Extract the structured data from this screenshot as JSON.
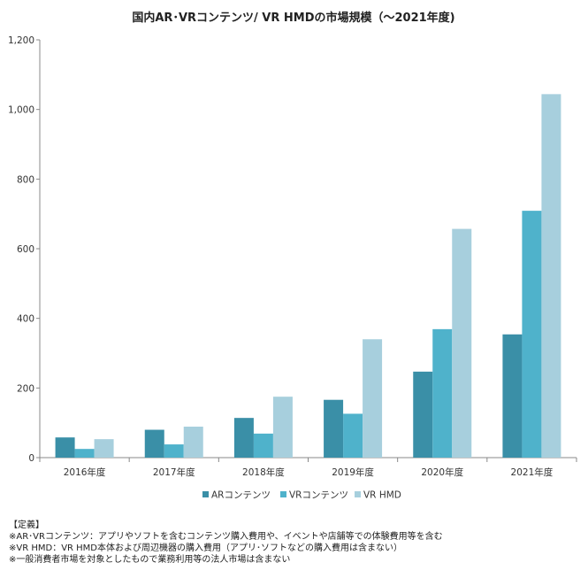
{
  "chart_data": {
    "type": "bar",
    "title": "国内AR･VRコンテンツ/ VR HMDの市場規模（～2021年度)",
    "categories": [
      "2016年度",
      "2017年度",
      "2018年度",
      "2019年度",
      "2020年度",
      "2021年度"
    ],
    "series": [
      {
        "name": "ARコンテンツ",
        "color": "#3a8fa7",
        "values": [
          58,
          80,
          114,
          166,
          247,
          354
        ]
      },
      {
        "name": "VRコンテンツ",
        "color": "#4fb2cb",
        "values": [
          25,
          38,
          69,
          126,
          369,
          709
        ]
      },
      {
        "name": "VR HMD",
        "color": "#a7cfdd",
        "values": [
          53,
          89,
          175,
          340,
          657,
          1044
        ]
      }
    ],
    "yticks": [
      "0",
      "200",
      "400",
      "600",
      "800",
      "1,000",
      "1,200"
    ],
    "ylim": [
      0,
      1200
    ],
    "grid": false,
    "legend_position": "bottom"
  },
  "notes": {
    "heading": "【定義】",
    "lines": [
      "※AR･VRコンテンツ：アプリやソフトを含むコンテンツ購入費用や、イベントや店舗等での体験費用等を含む",
      "※VR HMD：VR HMD本体および周辺機器の購入費用（アプリ･ソフトなどの購入費用は含まない）",
      "※一般消費者市場を対象としたもので業務利用等の法人市場は含まない"
    ]
  }
}
